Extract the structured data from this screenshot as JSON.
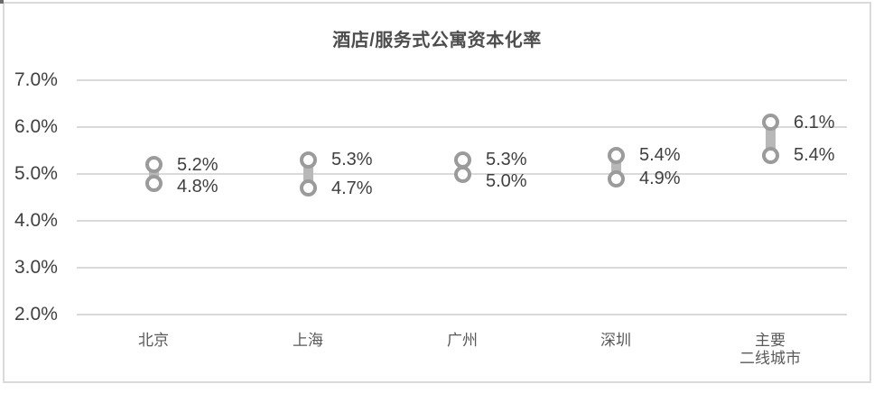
{
  "chart_data": {
    "type": "scatter",
    "subtype": "high-low-range-dots",
    "title": "酒店/服务式公寓资本化率",
    "categories": [
      "北京",
      "上海",
      "广州",
      "深圳",
      "主要\n二线城市"
    ],
    "series": [
      {
        "name": "high",
        "values": [
          5.2,
          5.3,
          5.3,
          5.4,
          6.1
        ],
        "labels": [
          "5.2%",
          "5.3%",
          "5.3%",
          "5.4%",
          "6.1%"
        ]
      },
      {
        "name": "low",
        "values": [
          4.8,
          4.7,
          5.0,
          4.9,
          5.4
        ],
        "labels": [
          "4.8%",
          "4.7%",
          "5.0%",
          "4.9%",
          "5.4%"
        ]
      }
    ],
    "xlabel": "",
    "ylabel": "",
    "ylim": [
      2.0,
      7.0
    ],
    "yticks": [
      7.0,
      6.0,
      5.0,
      4.0,
      3.0,
      2.0
    ],
    "ytick_labels": [
      "7.0%",
      "6.0%",
      "5.0%",
      "4.0%",
      "3.0%",
      "2.0%"
    ],
    "grid": true,
    "legend": "none",
    "colors": {
      "marker_ring": "#9b9b9b",
      "marker_fill": "#ffffff",
      "connector": "#b8b8b8",
      "gridline": "#dadada",
      "axis_text": "#3f3f3f",
      "category_text": "#595959",
      "title_text": "#4d4d4d",
      "frame_border": "#dadada",
      "background": "#ffffff"
    }
  }
}
